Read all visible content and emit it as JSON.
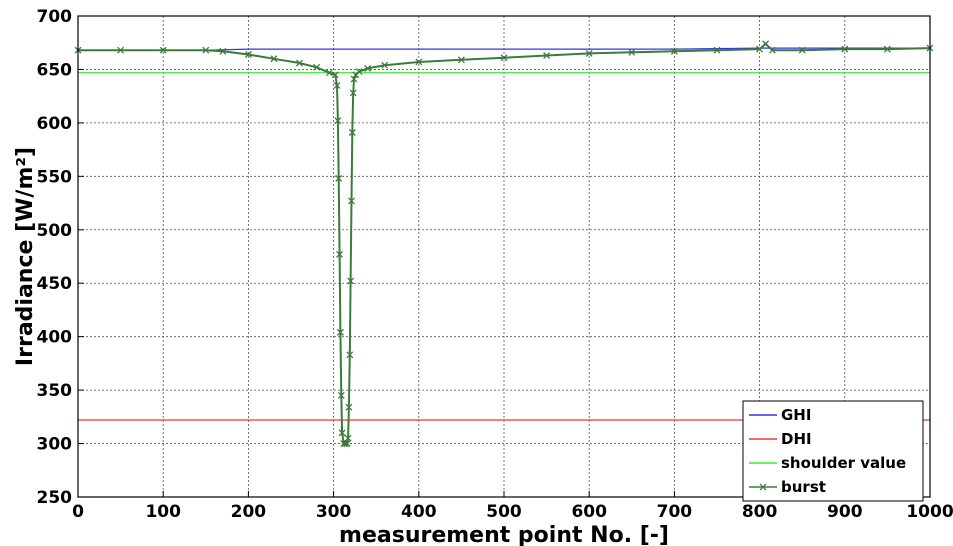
{
  "chart_data": {
    "type": "line",
    "xlabel": "measurement point No. [-]",
    "ylabel": "Irradiance [W/m²]",
    "xlim": [
      0,
      1000
    ],
    "ylim": [
      250,
      700
    ],
    "x_ticks": [
      0,
      100,
      200,
      300,
      400,
      500,
      600,
      700,
      800,
      900,
      1000
    ],
    "y_ticks": [
      250,
      300,
      350,
      400,
      450,
      500,
      550,
      600,
      650,
      700
    ],
    "grid": true,
    "legend_position": "bottom-right",
    "series": [
      {
        "name": "GHI",
        "color": "#3333ee",
        "marker": "none",
        "x": [
          0,
          150,
          200,
          300,
          400,
          500,
          600,
          650,
          700,
          800,
          900,
          1000
        ],
        "y": [
          668,
          668,
          669,
          669,
          669,
          669,
          669,
          669,
          669,
          670,
          670,
          670
        ]
      },
      {
        "name": "DHI",
        "color": "#ee3333",
        "marker": "none",
        "x": [
          0,
          1000
        ],
        "y": [
          322,
          322
        ]
      },
      {
        "name": "shoulder value",
        "color": "#33ee33",
        "marker": "none",
        "x": [
          0,
          1000
        ],
        "y": [
          647,
          647
        ]
      },
      {
        "name": "burst",
        "color": "#3d7a3d",
        "marker": "x",
        "x": [
          0,
          50,
          100,
          150,
          170,
          200,
          230,
          260,
          280,
          295,
          302,
          304,
          305,
          306,
          307,
          308,
          309,
          310,
          312,
          314,
          316,
          317,
          318,
          319,
          320,
          321,
          322,
          323,
          324,
          326,
          330,
          340,
          360,
          400,
          450,
          500,
          550,
          600,
          650,
          700,
          750,
          800,
          807,
          815,
          850,
          900,
          950,
          1000
        ],
        "y": [
          668,
          668,
          668,
          668,
          667,
          664,
          660,
          656,
          652,
          647,
          645,
          635,
          602,
          548,
          477,
          404,
          345,
          310,
          300,
          300,
          300,
          305,
          334,
          383,
          452,
          527,
          591,
          628,
          641,
          645,
          648,
          651,
          654,
          657,
          659,
          661,
          663,
          665,
          666,
          667,
          668,
          669,
          674,
          668,
          668,
          669,
          669,
          670
        ]
      }
    ]
  }
}
